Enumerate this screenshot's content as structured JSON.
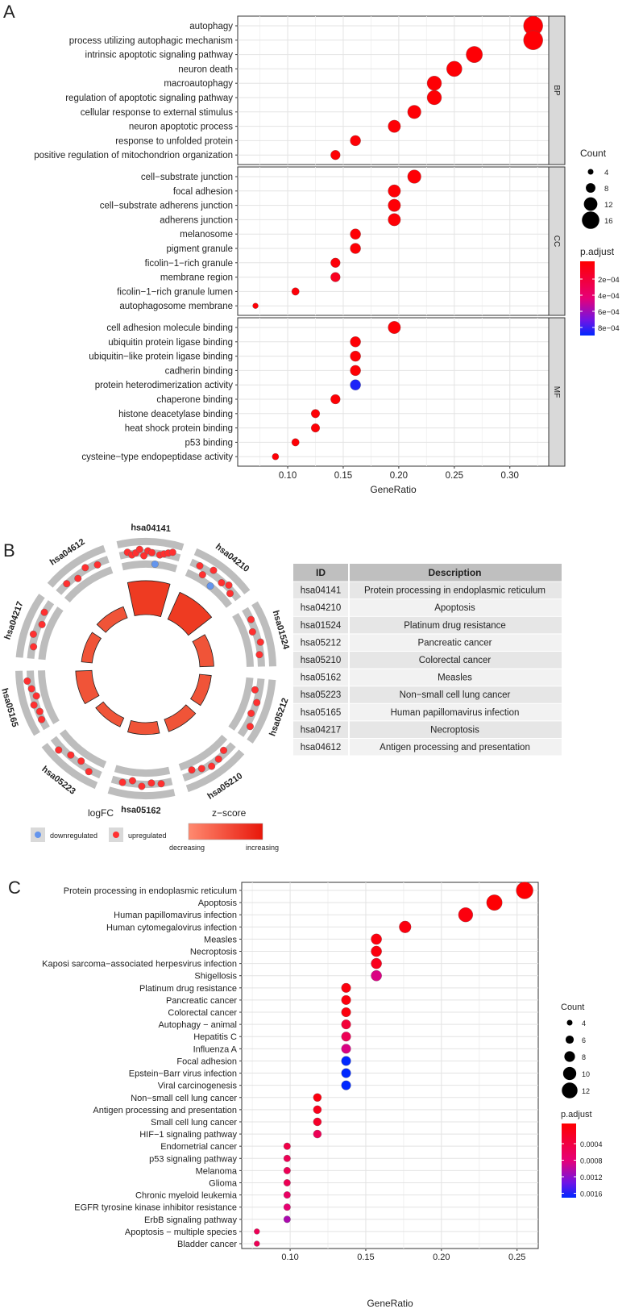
{
  "panelA": {
    "label": "A",
    "xlabel": "GeneRatio",
    "legend_count_title": "Count",
    "legend_padj_title": "p.adjust",
    "count_legend": [
      4,
      8,
      12,
      16
    ],
    "padj_ticks": [
      "2e−04",
      "4e−04",
      "6e−04",
      "8e−04"
    ],
    "facets": [
      "BP",
      "CC",
      "MF"
    ]
  },
  "panelB": {
    "label": "B",
    "table_headers": [
      "ID",
      "Description"
    ],
    "table_rows": [
      [
        "hsa04141",
        "Protein processing in endoplasmic reticulum"
      ],
      [
        "hsa04210",
        "Apoptosis"
      ],
      [
        "hsa01524",
        "Platinum drug resistance"
      ],
      [
        "hsa05212",
        "Pancreatic cancer"
      ],
      [
        "hsa05210",
        "Colorectal cancer"
      ],
      [
        "hsa05162",
        "Measles"
      ],
      [
        "hsa05223",
        "Non−small cell lung cancer"
      ],
      [
        "hsa05165",
        "Human papillomavirus infection"
      ],
      [
        "hsa04217",
        "Necroptosis"
      ],
      [
        "hsa04612",
        "Antigen processing and presentation"
      ]
    ],
    "legend_logfc_title": "logFC",
    "legend_down": "downregulated",
    "legend_up": "upregulated",
    "legend_z_title": "z−score",
    "legend_decreasing": "decreasing",
    "legend_increasing": "increasing"
  },
  "panelC": {
    "label": "C",
    "xlabel": "GeneRatio",
    "legend_count_title": "Count",
    "legend_padj_title": "p.adjust",
    "count_legend": [
      4,
      6,
      8,
      10,
      12
    ],
    "padj_ticks": [
      "0.0004",
      "0.0008",
      "0.0012",
      "0.0016"
    ]
  },
  "chart_data": [
    {
      "type": "scatter",
      "title": "A",
      "xlabel": "GeneRatio",
      "xlim": [
        0.055,
        0.335
      ],
      "xticks": [
        0.1,
        0.15,
        0.2,
        0.25,
        0.3
      ],
      "tick_labels": [
        "0.10",
        "0.15",
        "0.20",
        "0.25",
        "0.30"
      ],
      "facets": [
        {
          "name": "BP",
          "points": [
            {
              "term": "autophagy",
              "x": 0.321,
              "count": 18,
              "p": 2e-05
            },
            {
              "term": "process utilizing autophagic mechanism",
              "x": 0.321,
              "count": 18,
              "p": 2e-05
            },
            {
              "term": "intrinsic apoptotic signaling pathway",
              "x": 0.268,
              "count": 15,
              "p": 2e-05
            },
            {
              "term": "neuron death",
              "x": 0.25,
              "count": 14,
              "p": 2e-05
            },
            {
              "term": "macroautophagy",
              "x": 0.232,
              "count": 13,
              "p": 2e-05
            },
            {
              "term": "regulation of apoptotic signaling pathway",
              "x": 0.232,
              "count": 13,
              "p": 2e-05
            },
            {
              "term": "cellular response to external stimulus",
              "x": 0.214,
              "count": 12,
              "p": 2e-05
            },
            {
              "term": "neuron apoptotic process",
              "x": 0.196,
              "count": 11,
              "p": 2e-05
            },
            {
              "term": "response to unfolded protein",
              "x": 0.161,
              "count": 9,
              "p": 2e-05
            },
            {
              "term": "positive regulation of mitochondrion organization",
              "x": 0.143,
              "count": 8,
              "p": 2e-05
            }
          ]
        },
        {
          "name": "CC",
          "points": [
            {
              "term": "cell−substrate junction",
              "x": 0.214,
              "count": 12,
              "p": 2e-05
            },
            {
              "term": "focal adhesion",
              "x": 0.196,
              "count": 11,
              "p": 2e-05
            },
            {
              "term": "cell−substrate adherens junction",
              "x": 0.196,
              "count": 11,
              "p": 2e-05
            },
            {
              "term": "adherens junction",
              "x": 0.196,
              "count": 11,
              "p": 2e-05
            },
            {
              "term": "melanosome",
              "x": 0.161,
              "count": 9,
              "p": 2e-05
            },
            {
              "term": "pigment granule",
              "x": 0.161,
              "count": 9,
              "p": 2e-05
            },
            {
              "term": "ficolin−1−rich granule",
              "x": 0.143,
              "count": 8,
              "p": 3e-05
            },
            {
              "term": "membrane region",
              "x": 0.143,
              "count": 8,
              "p": 0.00012
            },
            {
              "term": "ficolin−1−rich granule lumen",
              "x": 0.107,
              "count": 6,
              "p": 3e-05
            },
            {
              "term": "autophagosome membrane",
              "x": 0.071,
              "count": 4,
              "p": 2e-05
            }
          ]
        },
        {
          "name": "MF",
          "points": [
            {
              "term": "cell adhesion molecule binding",
              "x": 0.196,
              "count": 11,
              "p": 2e-05
            },
            {
              "term": "ubiquitin protein ligase binding",
              "x": 0.161,
              "count": 9,
              "p": 2e-05
            },
            {
              "term": "ubiquitin−like protein ligase binding",
              "x": 0.161,
              "count": 9,
              "p": 2e-05
            },
            {
              "term": "cadherin binding",
              "x": 0.161,
              "count": 9,
              "p": 2e-05
            },
            {
              "term": "protein heterodimerization activity",
              "x": 0.161,
              "count": 9,
              "p": 0.00088
            },
            {
              "term": "chaperone binding",
              "x": 0.143,
              "count": 8,
              "p": 2e-05
            },
            {
              "term": "histone deacetylase binding",
              "x": 0.125,
              "count": 7,
              "p": 2e-05
            },
            {
              "term": "heat shock protein binding",
              "x": 0.125,
              "count": 7,
              "p": 2e-05
            },
            {
              "term": "p53 binding",
              "x": 0.107,
              "count": 6,
              "p": 2e-05
            },
            {
              "term": "cysteine−type endopeptidase activity",
              "x": 0.089,
              "count": 5,
              "p": 2e-05
            }
          ]
        }
      ],
      "size_range": [
        4,
        18
      ],
      "color_range": [
        0,
        0.00093
      ]
    },
    {
      "type": "scatter",
      "title": "C",
      "xlabel": "GeneRatio",
      "xlim": [
        0.068,
        0.264
      ],
      "xticks": [
        0.1,
        0.15,
        0.2,
        0.25
      ],
      "tick_labels": [
        "0.10",
        "0.15",
        "0.20",
        "0.25"
      ],
      "points": [
        {
          "term": "Protein processing in endoplasmic reticulum",
          "x": 0.255,
          "count": 13,
          "p": 2e-05
        },
        {
          "term": "Apoptosis",
          "x": 0.235,
          "count": 12,
          "p": 2e-05
        },
        {
          "term": "Human papillomavirus infection",
          "x": 0.216,
          "count": 11,
          "p": 0.0001
        },
        {
          "term": "Human cytomegalovirus infection",
          "x": 0.176,
          "count": 9,
          "p": 0.0001
        },
        {
          "term": "Measles",
          "x": 0.157,
          "count": 8,
          "p": 0.0001
        },
        {
          "term": "Necroptosis",
          "x": 0.157,
          "count": 8,
          "p": 0.0001
        },
        {
          "term": "Kaposi sarcoma−associated herpesvirus infection",
          "x": 0.157,
          "count": 8,
          "p": 0.0002
        },
        {
          "term": "Shigellosis",
          "x": 0.157,
          "count": 8,
          "p": 0.0009
        },
        {
          "term": "Platinum drug resistance",
          "x": 0.137,
          "count": 7,
          "p": 0.0001
        },
        {
          "term": "Pancreatic cancer",
          "x": 0.137,
          "count": 7,
          "p": 0.0001
        },
        {
          "term": "Colorectal cancer",
          "x": 0.137,
          "count": 7,
          "p": 0.0001
        },
        {
          "term": "Autophagy − animal",
          "x": 0.137,
          "count": 7,
          "p": 0.0004
        },
        {
          "term": "Hepatitis C",
          "x": 0.137,
          "count": 7,
          "p": 0.0006
        },
        {
          "term": "Influenza A",
          "x": 0.137,
          "count": 7,
          "p": 0.0009
        },
        {
          "term": "Focal adhesion",
          "x": 0.137,
          "count": 7,
          "p": 0.0017
        },
        {
          "term": "Epstein−Barr virus infection",
          "x": 0.137,
          "count": 7,
          "p": 0.0017
        },
        {
          "term": "Viral carcinogenesis",
          "x": 0.137,
          "count": 7,
          "p": 0.0017
        },
        {
          "term": "Non−small cell lung cancer",
          "x": 0.118,
          "count": 6,
          "p": 0.0001
        },
        {
          "term": "Antigen processing and presentation",
          "x": 0.118,
          "count": 6,
          "p": 0.0002
        },
        {
          "term": "Small cell lung cancer",
          "x": 0.118,
          "count": 6,
          "p": 0.0003
        },
        {
          "term": "HIF−1 signaling pathway",
          "x": 0.118,
          "count": 6,
          "p": 0.0006
        },
        {
          "term": "Endometrial cancer",
          "x": 0.098,
          "count": 5,
          "p": 0.0005
        },
        {
          "term": "p53 signaling pathway",
          "x": 0.098,
          "count": 5,
          "p": 0.0006
        },
        {
          "term": "Melanoma",
          "x": 0.098,
          "count": 5,
          "p": 0.0006
        },
        {
          "term": "Glioma",
          "x": 0.098,
          "count": 5,
          "p": 0.0006
        },
        {
          "term": "Chronic myeloid leukemia",
          "x": 0.098,
          "count": 5,
          "p": 0.0007
        },
        {
          "term": "EGFR tyrosine kinase inhibitor resistance",
          "x": 0.098,
          "count": 5,
          "p": 0.0008
        },
        {
          "term": "ErbB signaling pathway",
          "x": 0.098,
          "count": 5,
          "p": 0.0011
        },
        {
          "term": "Apoptosis − multiple species",
          "x": 0.078,
          "count": 4,
          "p": 0.0006
        },
        {
          "term": "Bladder cancer",
          "x": 0.078,
          "count": 4,
          "p": 0.0006
        }
      ],
      "size_range": [
        4,
        13
      ],
      "color_range": [
        0,
        0.0017
      ]
    },
    {
      "type": "chord",
      "title": "B",
      "sectors": [
        {
          "id": "hsa04141",
          "zscore": 5.0,
          "genes": [
            {
              "logfc": "up",
              "r": 0.55
            },
            {
              "logfc": "up",
              "r": 0.45
            },
            {
              "logfc": "up",
              "r": 0.5
            },
            {
              "logfc": "up",
              "r": 0.6
            },
            {
              "logfc": "up",
              "r": 0.4
            },
            {
              "logfc": "up",
              "r": 0.55
            },
            {
              "logfc": "up",
              "r": 0.5
            },
            {
              "logfc": "down",
              "r": 0.15
            },
            {
              "logfc": "up",
              "r": 0.45
            },
            {
              "logfc": "up",
              "r": 0.5
            },
            {
              "logfc": "up",
              "r": 0.55
            },
            {
              "logfc": "up",
              "r": 0.6
            }
          ]
        },
        {
          "id": "hsa04210",
          "zscore": 4.6,
          "genes": [
            {
              "logfc": "up",
              "r": 0.5
            },
            {
              "logfc": "up",
              "r": 0.3
            },
            {
              "logfc": "up",
              "r": 0.6
            },
            {
              "logfc": "down",
              "r": 0.15
            },
            {
              "logfc": "up",
              "r": 0.45
            },
            {
              "logfc": "up",
              "r": 0.55
            },
            {
              "logfc": "up",
              "r": 0.4
            }
          ]
        },
        {
          "id": "hsa01524",
          "zscore": 3.2,
          "genes": [
            {
              "logfc": "up",
              "r": 0.5
            },
            {
              "logfc": "up",
              "r": 0.4
            },
            {
              "logfc": "up",
              "r": 0.55
            },
            {
              "logfc": "up",
              "r": 0.45
            }
          ]
        },
        {
          "id": "hsa05212",
          "zscore": 3.0,
          "genes": [
            {
              "logfc": "up",
              "r": 0.35
            },
            {
              "logfc": "up",
              "r": 0.5
            },
            {
              "logfc": "up",
              "r": 0.45
            },
            {
              "logfc": "up",
              "r": 0.6
            }
          ]
        },
        {
          "id": "hsa05210",
          "zscore": 3.1,
          "genes": [
            {
              "logfc": "up",
              "r": 0.4
            },
            {
              "logfc": "up",
              "r": 0.5
            },
            {
              "logfc": "up",
              "r": 0.55
            },
            {
              "logfc": "up",
              "r": 0.45
            },
            {
              "logfc": "up",
              "r": 0.35
            }
          ]
        },
        {
          "id": "hsa05162",
          "zscore": 3.0,
          "genes": [
            {
              "logfc": "up",
              "r": 0.5
            },
            {
              "logfc": "up",
              "r": 0.45
            },
            {
              "logfc": "up",
              "r": 0.55
            },
            {
              "logfc": "up",
              "r": 0.4
            },
            {
              "logfc": "up",
              "r": 0.5
            }
          ]
        },
        {
          "id": "hsa05223",
          "zscore": 2.8,
          "genes": [
            {
              "logfc": "up",
              "r": 0.55
            },
            {
              "logfc": "up",
              "r": 0.4
            },
            {
              "logfc": "up",
              "r": 0.45
            },
            {
              "logfc": "up",
              "r": 0.6
            }
          ]
        },
        {
          "id": "hsa05165",
          "zscore": 3.4,
          "genes": [
            {
              "logfc": "up",
              "r": 0.5
            },
            {
              "logfc": "up",
              "r": 0.45
            },
            {
              "logfc": "up",
              "r": 0.55
            },
            {
              "logfc": "up",
              "r": 0.4
            },
            {
              "logfc": "up",
              "r": 0.5
            },
            {
              "logfc": "up",
              "r": 0.6
            }
          ]
        },
        {
          "id": "hsa04217",
          "zscore": 2.9,
          "genes": [
            {
              "logfc": "up",
              "r": 0.45
            },
            {
              "logfc": "up",
              "r": 0.55
            },
            {
              "logfc": "up",
              "r": 0.4
            },
            {
              "logfc": "up",
              "r": 0.5
            }
          ]
        },
        {
          "id": "hsa04612",
          "zscore": 3.0,
          "genes": [
            {
              "logfc": "up",
              "r": 0.5
            },
            {
              "logfc": "up",
              "r": 0.4
            },
            {
              "logfc": "up",
              "r": 0.55
            },
            {
              "logfc": "up",
              "r": 0.45
            }
          ]
        }
      ]
    }
  ]
}
